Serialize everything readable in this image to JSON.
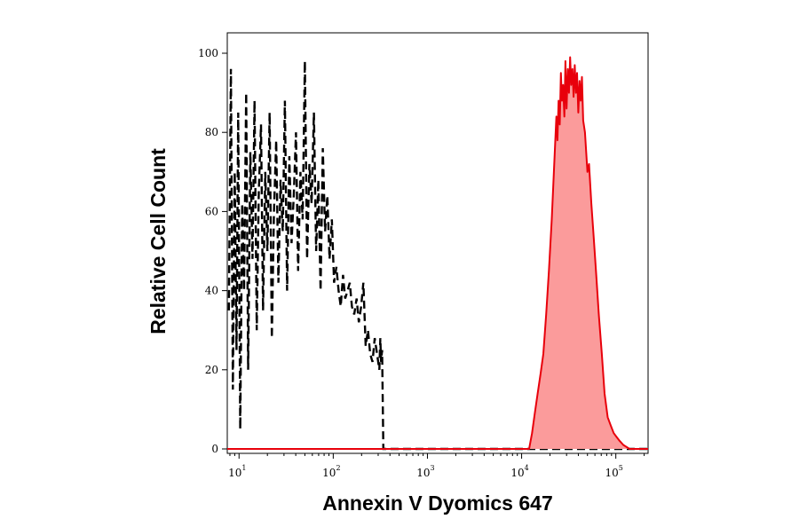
{
  "chart_data": {
    "type": "area",
    "xlabel": "Annexin V Dyomics 647",
    "ylabel": "Relative Cell Count",
    "x_scale": "log",
    "xlim": [
      7.5,
      220000
    ],
    "ylim": [
      0,
      105
    ],
    "grid": false,
    "x_ticks": [
      {
        "base": "10",
        "exp": "1",
        "value": 10
      },
      {
        "base": "10",
        "exp": "2",
        "value": 100
      },
      {
        "base": "10",
        "exp": "3",
        "value": 1000
      },
      {
        "base": "10",
        "exp": "4",
        "value": 10000
      },
      {
        "base": "10",
        "exp": "5",
        "value": 100000
      }
    ],
    "y_ticks": [
      {
        "label": "0",
        "value": 0
      },
      {
        "label": "20",
        "value": 20
      },
      {
        "label": "40",
        "value": 40
      },
      {
        "label": "60",
        "value": 60
      },
      {
        "label": "80",
        "value": 80
      },
      {
        "label": "100",
        "value": 100
      }
    ],
    "series": [
      {
        "style": "dashed",
        "color": "#000000",
        "x": [
          7.8,
          8.2,
          8.6,
          9.0,
          9.4,
          9.8,
          10.3,
          10.8,
          11.3,
          11.9,
          12.5,
          13.2,
          13.9,
          14.6,
          15.4,
          16.2,
          17.1,
          18.0,
          19.0,
          20.0,
          21.1,
          22.3,
          23.5,
          24.8,
          26.2,
          27.6,
          29.1,
          30.7,
          32.4,
          34.2,
          36.1,
          38.1,
          40.2,
          42.4,
          44.8,
          47.3,
          50.0,
          52.8,
          55.8,
          59.0,
          62.3,
          65.8,
          69.5,
          73.4,
          77.5,
          81.9,
          86.5,
          91.4,
          96.6,
          102,
          108,
          114,
          120,
          127,
          134,
          142,
          150,
          158,
          167,
          177,
          187,
          198,
          209,
          221,
          234,
          247,
          261,
          276,
          292,
          309,
          316,
          322,
          330,
          340,
          360,
          400,
          1000,
          10000,
          220000
        ],
        "y": [
          35,
          96,
          15,
          70,
          25,
          85,
          5,
          62,
          40,
          90,
          20,
          75,
          48,
          88,
          30,
          65,
          82,
          35,
          70,
          50,
          85,
          28,
          60,
          78,
          42,
          68,
          55,
          88,
          40,
          74,
          52,
          64,
          80,
          45,
          70,
          58,
          98,
          48,
          72,
          62,
          85,
          50,
          68,
          40,
          76,
          55,
          64,
          48,
          58,
          42,
          46,
          40,
          36,
          44,
          38,
          40,
          42,
          36,
          34,
          38,
          32,
          36,
          42,
          26,
          30,
          24,
          22,
          28,
          24,
          20,
          28,
          22,
          25,
          0,
          0,
          0,
          0,
          0,
          0
        ]
      },
      {
        "style": "filled",
        "color": "#e8000b",
        "fill": "#fb9b9b",
        "x": [
          7.5,
          1000,
          10000,
          12000,
          12900,
          13800,
          14800,
          15900,
          17000,
          18200,
          19500,
          20900,
          22400,
          23400,
          24000,
          24700,
          25400,
          26100,
          26800,
          27600,
          28400,
          29200,
          30000,
          30900,
          31800,
          32700,
          33600,
          34600,
          35600,
          36600,
          37700,
          38800,
          40000,
          41200,
          42400,
          43700,
          45000,
          47000,
          50000,
          52000,
          55000,
          58000,
          62000,
          66000,
          71000,
          76000,
          82000,
          88000,
          95000,
          102000,
          110000,
          120000,
          140000,
          220000
        ],
        "y": [
          0,
          0,
          0,
          0,
          4,
          9,
          14,
          19,
          24,
          34,
          45,
          58,
          74,
          84,
          78,
          88,
          82,
          95,
          88,
          92,
          84,
          98,
          86,
          96,
          90,
          99,
          92,
          96,
          89,
          97,
          90,
          95,
          85,
          93,
          88,
          94,
          83,
          80,
          70,
          72,
          62,
          54,
          44,
          34,
          24,
          14,
          8,
          6,
          4,
          3,
          2,
          1,
          0,
          0
        ]
      }
    ]
  }
}
